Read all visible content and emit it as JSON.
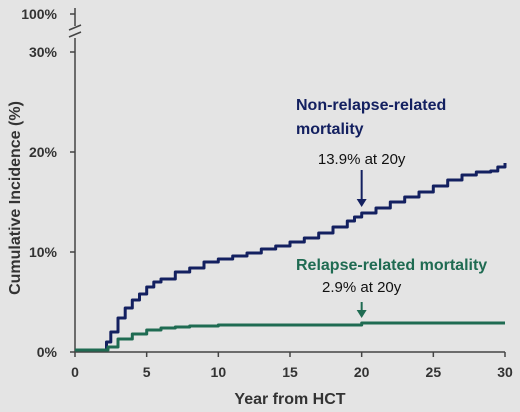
{
  "chart_data": {
    "type": "line",
    "xlabel": "Year from HCT",
    "ylabel": "Cumulative Incidence (%)",
    "xlim": [
      0,
      30
    ],
    "ylim": [
      0,
      30
    ],
    "x_ticks": [
      "0",
      "5",
      "10",
      "15",
      "20",
      "25",
      "30"
    ],
    "y_ticks": [
      "0%",
      "10%",
      "20%",
      "30%"
    ],
    "y_break_label": "100%",
    "grid": false,
    "step": true,
    "series": [
      {
        "name": "Non-relapse-related mortality",
        "color": "#132060",
        "x": [
          0,
          2.1,
          2.2,
          2.5,
          3,
          3.5,
          4,
          4.5,
          5,
          5.5,
          6,
          7,
          8,
          9,
          10,
          11,
          12,
          13,
          14,
          15,
          16,
          17,
          18,
          19,
          19.5,
          20,
          21,
          22,
          23,
          24,
          25,
          26,
          27,
          28,
          29,
          29.5,
          30
        ],
        "y": [
          0.2,
          0.2,
          1.0,
          2.0,
          3.4,
          4.4,
          5.2,
          5.8,
          6.5,
          7.0,
          7.3,
          8.0,
          8.4,
          9.0,
          9.3,
          9.6,
          9.9,
          10.3,
          10.6,
          11.0,
          11.4,
          11.9,
          12.5,
          13.1,
          13.5,
          13.9,
          14.4,
          15.0,
          15.5,
          16.0,
          16.6,
          17.2,
          17.7,
          18.0,
          18.1,
          18.5,
          18.9
        ]
      },
      {
        "name": "Relapse-related mortality",
        "color": "#1f6b52",
        "x": [
          0,
          2.1,
          2.3,
          3,
          4,
          5,
          6,
          7,
          8,
          10,
          12,
          15,
          19,
          20,
          25,
          30
        ],
        "y": [
          0.2,
          0.2,
          0.5,
          1.3,
          1.8,
          2.2,
          2.4,
          2.5,
          2.6,
          2.7,
          2.7,
          2.7,
          2.7,
          2.9,
          2.9,
          2.9
        ]
      }
    ],
    "annotations": [
      {
        "text": "13.9% at 20y",
        "x": 20,
        "y": 13.9,
        "series": 0
      },
      {
        "text": "2.9% at 20y",
        "x": 20,
        "y": 2.9,
        "series": 1
      }
    ]
  }
}
